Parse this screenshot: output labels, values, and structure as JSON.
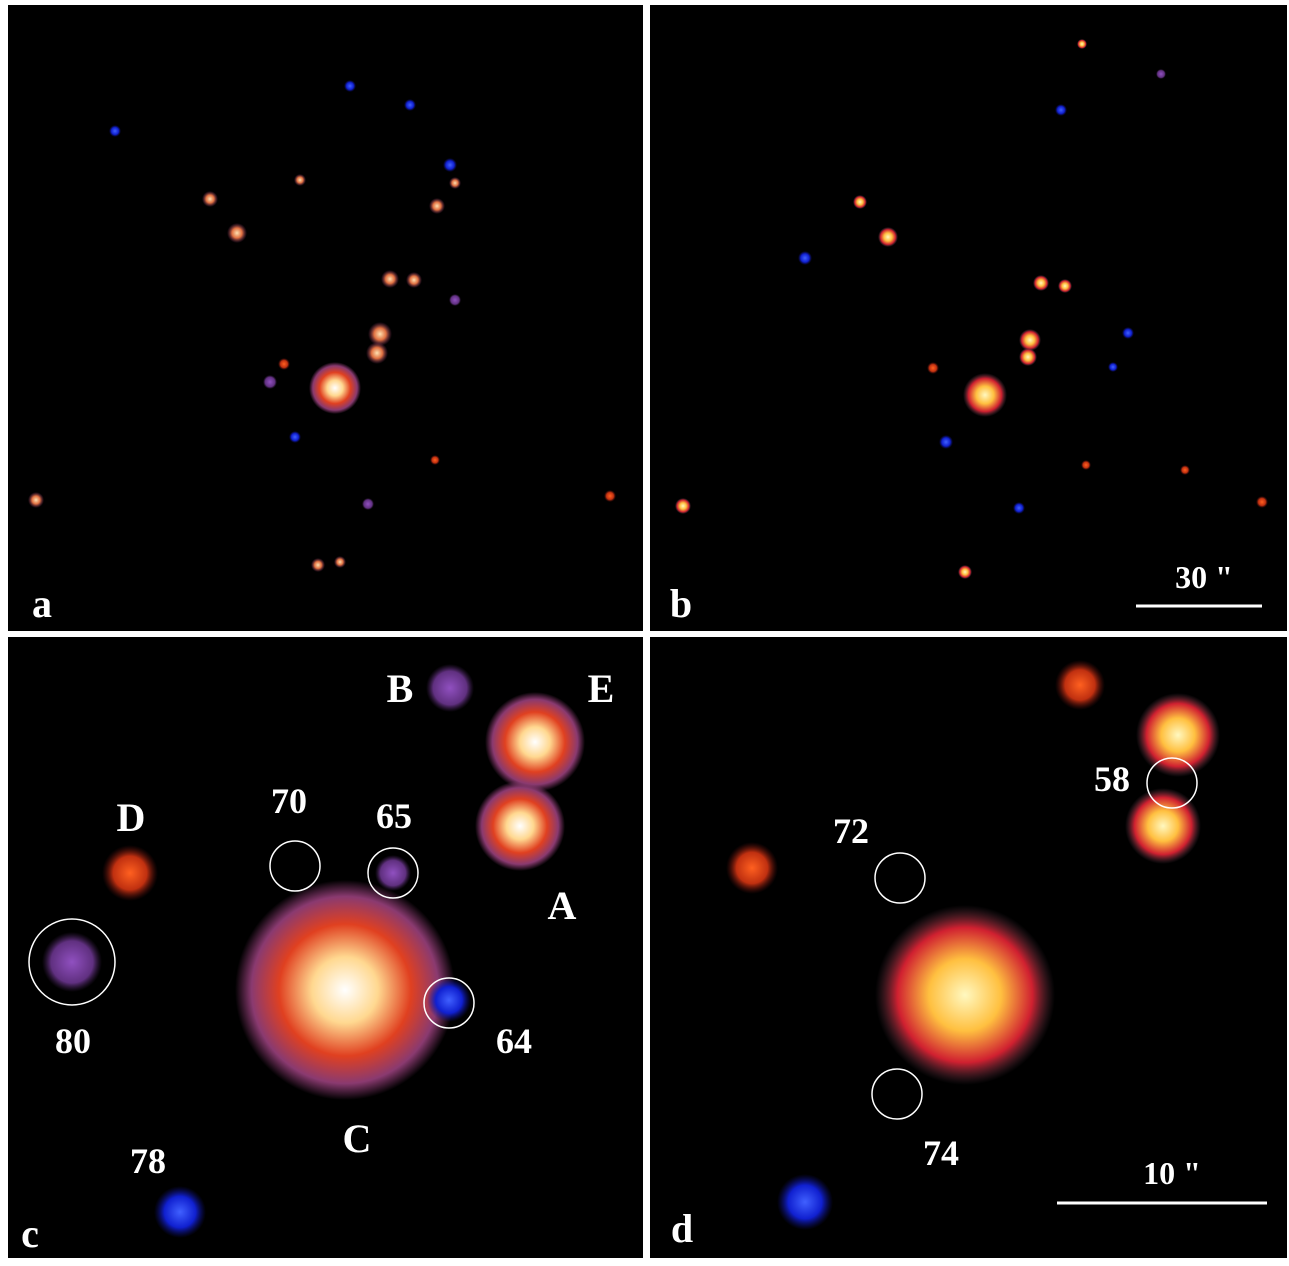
{
  "panels": [
    {
      "label": "a"
    },
    {
      "label": "b",
      "scale_bar": "30 \""
    },
    {
      "label": "c",
      "sources": [
        "B",
        "E",
        "D",
        "70",
        "65",
        "A",
        "80",
        "64",
        "C",
        "78"
      ]
    },
    {
      "label": "d",
      "scale_bar": "10 \"",
      "sources": [
        "72",
        "58",
        "74"
      ]
    }
  ]
}
